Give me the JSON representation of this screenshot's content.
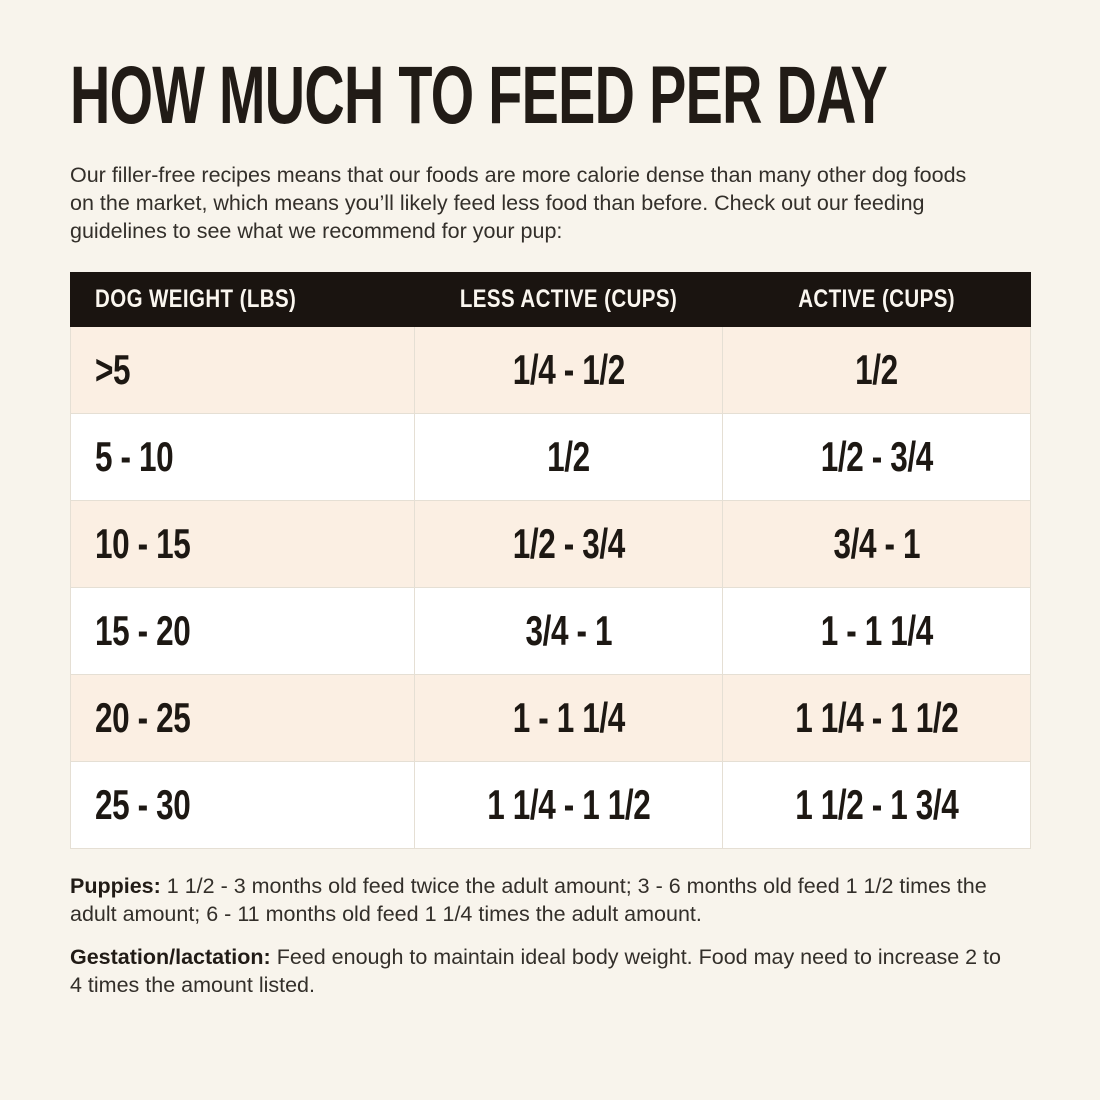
{
  "header": {
    "title": "HOW MUCH TO FEED PER DAY",
    "intro": "Our filler-free recipes means that our foods are more calorie dense than many other dog foods on the market, which means you’ll likely feed less food than before. Check out our feeding guidelines to see what we recommend for your pup:"
  },
  "table": {
    "columns": [
      "DOG WEIGHT (LBS)",
      "LESS ACTIVE (CUPS)",
      "ACTIVE (CUPS)"
    ],
    "rows": [
      [
        ">5",
        "1/4 - 1/2",
        "1/2"
      ],
      [
        "5 - 10",
        "1/2",
        "1/2 - 3/4"
      ],
      [
        "10 - 15",
        "1/2 - 3/4",
        "3/4 - 1"
      ],
      [
        "15 - 20",
        "3/4 - 1",
        "1 - 1 1/4"
      ],
      [
        "20 - 25",
        "1 - 1 1/4",
        "1 1/4 - 1 1/2"
      ],
      [
        "25 - 30",
        "1 1/4 - 1 1/2",
        "1 1/2 - 1 3/4"
      ]
    ]
  },
  "notes": [
    {
      "label": "Puppies:",
      "text": "1 1/2 - 3 months old feed twice the adult amount; 3 - 6 months old feed 1 1/2 times the adult amount; 6 - 11 months old feed 1 1/4 times the adult amount."
    },
    {
      "label": "Gestation/lactation:",
      "text": "Feed enough to maintain ideal body weight. Food may need to increase 2 to 4 times the amount listed."
    }
  ],
  "colors": {
    "page_bg": "#f8f4ec",
    "table_header_bg": "#1a1410",
    "table_header_text": "#faf6ef",
    "row_alt_bg": "#fbefe3",
    "row_bg": "#ffffff",
    "table_border": "#e5dfd4",
    "heading_text": "#211b16",
    "body_text": "#332f2a"
  }
}
